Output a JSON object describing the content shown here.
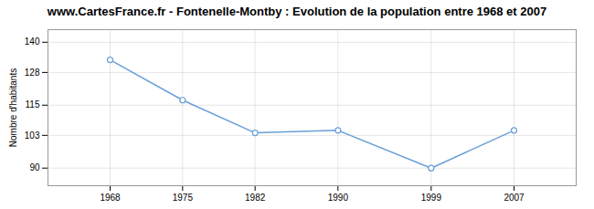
{
  "chart_data": {
    "type": "line",
    "title": "www.CartesFrance.fr - Fontenelle-Montby : Evolution de la population entre 1968 et 2007",
    "ylabel": "Nombre d'habitants",
    "x": [
      1968,
      1975,
      1982,
      1990,
      1999,
      2007
    ],
    "values": [
      133,
      117,
      104,
      105,
      90,
      105
    ],
    "color": "#6a9fd8",
    "marker": "circle",
    "xlim": [
      1962,
      2013
    ],
    "xticks": [
      1968,
      1975,
      1982,
      1990,
      1999,
      2007
    ],
    "ylim": [
      83,
      145
    ],
    "yticks": [
      90,
      103,
      115,
      128,
      140
    ],
    "grid": true
  }
}
